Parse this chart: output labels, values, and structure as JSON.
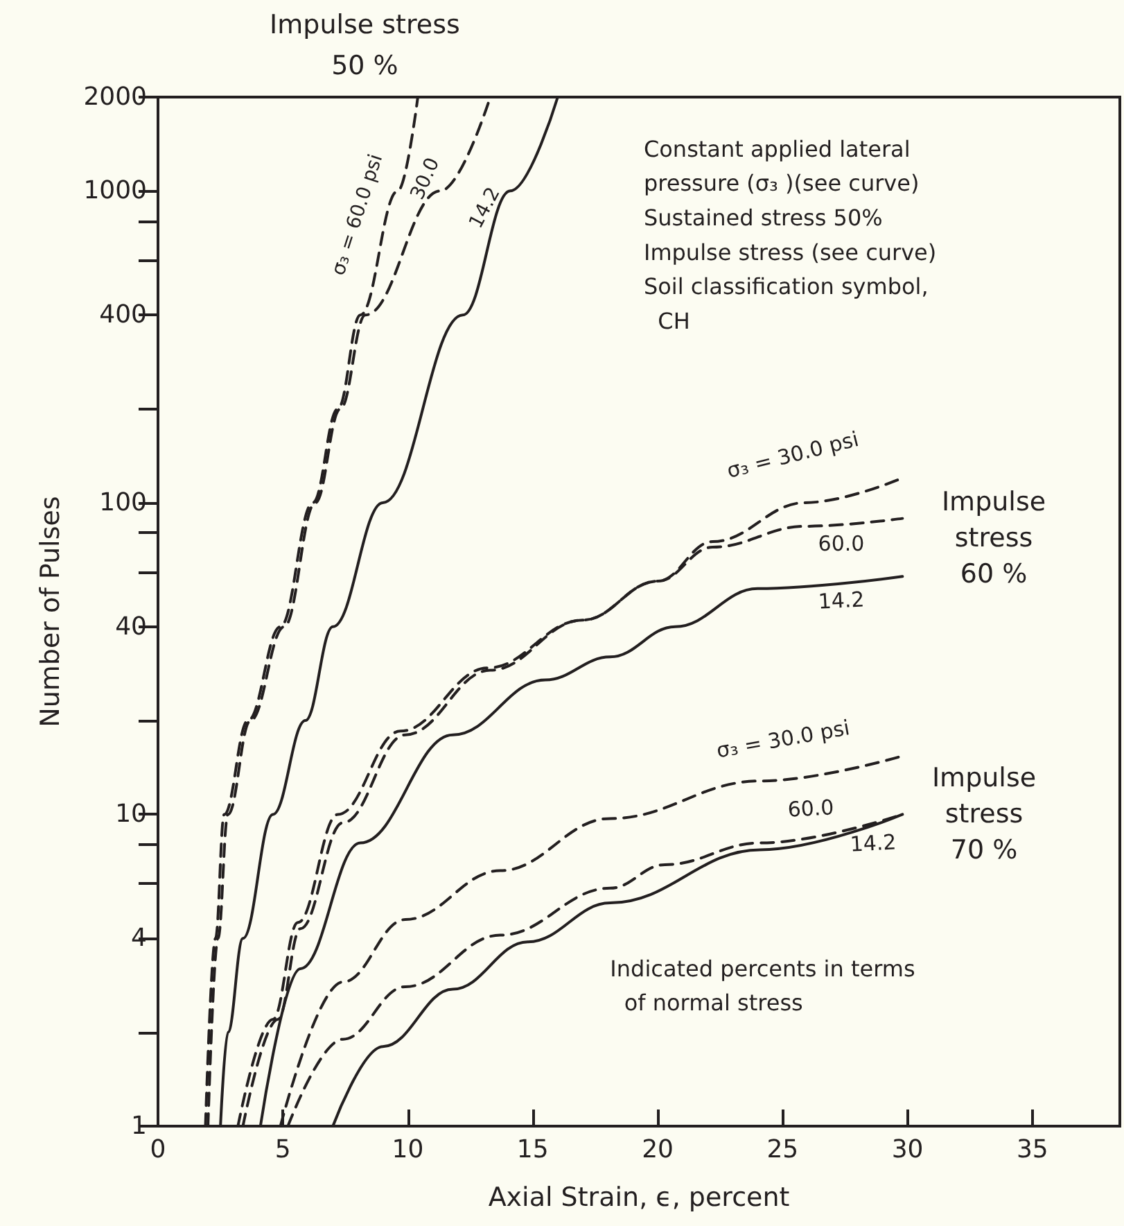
{
  "chart_data": {
    "type": "line",
    "xlabel": "Axial Strain, ϵ, percent",
    "ylabel": "Number of Pulses",
    "xlim": [
      0,
      38.5
    ],
    "xticks": [
      0,
      5,
      10,
      15,
      20,
      25,
      30,
      35
    ],
    "ylim": [
      1,
      2000
    ],
    "log": "y",
    "yticks": [
      1,
      {
        "value": 2,
        "label": null
      },
      4,
      {
        "value": 6,
        "label": null
      },
      {
        "value": 8,
        "label": null
      },
      10,
      {
        "value": 20,
        "label": null
      },
      40,
      {
        "value": 60,
        "label": null
      },
      {
        "value": 80,
        "label": null
      },
      100,
      {
        "value": 200,
        "label": null
      },
      400,
      {
        "value": 600,
        "label": null
      },
      {
        "value": 800,
        "label": null
      },
      1000,
      2000
    ],
    "grid": false,
    "marker": "none",
    "series": [
      {
        "color": "#231f20",
        "line_style": "dashed",
        "x": [
          1.9,
          2.3,
          2.65,
          3.6,
          4.9,
          6.2,
          7.2,
          8.1,
          9.6,
          10.4
        ],
        "values": [
          1,
          4,
          10,
          20,
          40,
          100,
          200,
          400,
          1000,
          2000
        ]
      },
      {
        "color": "#231f20",
        "line_style": "dashed",
        "x": [
          2.0,
          2.4,
          2.8,
          3.7,
          5.05,
          6.3,
          7.3,
          8.3,
          11.3,
          13.3
        ],
        "values": [
          1,
          4,
          10,
          20,
          40,
          100,
          200,
          400,
          1000,
          2000
        ]
      },
      {
        "color": "#231f20",
        "line_style": "solid",
        "x": [
          2.5,
          2.8,
          3.4,
          4.6,
          5.9,
          7.0,
          9.0,
          12.2,
          14.1,
          16.0
        ],
        "values": [
          1,
          2,
          4,
          10,
          20,
          40,
          100,
          400,
          1000,
          2000
        ]
      },
      {
        "color": "#231f20",
        "line_style": "dashed",
        "x": [
          3.4,
          4.8,
          5.7,
          7.4,
          9.9,
          13.3,
          17.0,
          20.0,
          22.2,
          25.9,
          29.8
        ],
        "values": [
          1,
          2.2,
          4.3,
          9.4,
          18,
          29,
          42,
          56,
          75,
          100,
          120
        ]
      },
      {
        "color": "#231f20",
        "line_style": "dashed",
        "x": [
          3.2,
          4.6,
          5.6,
          7.2,
          9.7,
          13.2,
          17.0,
          20.0,
          22.2,
          25.9,
          29.8
        ],
        "values": [
          1,
          2.2,
          4.5,
          10,
          18.5,
          29.5,
          42,
          56,
          72,
          84,
          89
        ]
      },
      {
        "color": "#231f20",
        "line_style": "solid",
        "x": [
          4.1,
          5.7,
          8.1,
          11.8,
          15.5,
          18.1,
          20.7,
          24.0,
          29.8
        ],
        "values": [
          1,
          3.2,
          8.1,
          18,
          27,
          32,
          40,
          53,
          58
        ]
      },
      {
        "color": "#231f20",
        "line_style": "dashed",
        "x": [
          4.9,
          7.4,
          9.9,
          13.7,
          18.1,
          24.1,
          29.8
        ],
        "values": [
          1,
          2.9,
          4.6,
          6.6,
          9.7,
          12.8,
          15.4
        ]
      },
      {
        "color": "#231f20",
        "line_style": "dashed",
        "x": [
          5.2,
          7.4,
          9.9,
          13.7,
          18.1,
          20.3,
          24.1,
          29.8
        ],
        "values": [
          1,
          1.9,
          2.8,
          4.1,
          5.8,
          6.9,
          8.1,
          10
        ]
      },
      {
        "color": "#231f20",
        "line_style": "solid",
        "x": [
          7.0,
          9.0,
          11.8,
          14.8,
          18.1,
          24.1,
          29.8
        ],
        "values": [
          1,
          1.8,
          2.75,
          3.9,
          5.2,
          7.7,
          10
        ]
      }
    ],
    "annotations": [
      "Impulse stress\n50 %",
      "Constant applied lateral\npressure (σ₃ )(see curve)\nSustained stress 50%\nImpulse stress (see curve)\nSoil classification symbol,\n  CH",
      "Indicated percents in terms\n  of normal stress",
      "σ₃ = 60.0 psi",
      "30.0",
      "14.2",
      "σ₃ = 30.0 psi",
      "60.0",
      "14.2",
      "Impulse\nstress\n60 %",
      "σ₃ = 30.0 psi",
      "60.0",
      "14.2",
      "Impulse\nstress\n70 %"
    ]
  }
}
